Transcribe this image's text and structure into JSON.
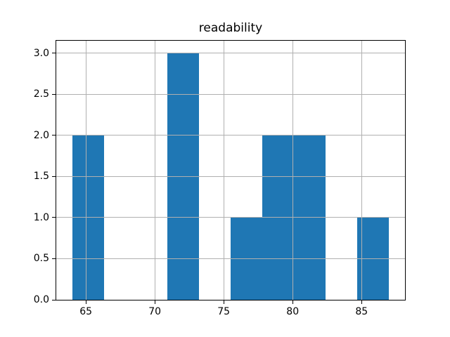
{
  "chart_data": {
    "type": "bar",
    "chart_kind": "histogram",
    "title": "readability",
    "xlabel": "",
    "ylabel": "",
    "bin_edges": [
      64.0,
      66.3,
      68.6,
      70.9,
      73.2,
      75.5,
      77.8,
      80.1,
      82.4,
      84.7,
      87.0
    ],
    "counts": [
      2,
      0,
      0,
      3,
      0,
      1,
      2,
      2,
      0,
      1
    ],
    "xtick_values": [
      65,
      70,
      75,
      80,
      85
    ],
    "xtick_labels": [
      "65",
      "70",
      "75",
      "80",
      "85"
    ],
    "ytick_values": [
      0.0,
      0.5,
      1.0,
      1.5,
      2.0,
      2.5,
      3.0
    ],
    "ytick_labels": [
      "0.0",
      "0.5",
      "1.0",
      "1.5",
      "2.0",
      "2.5",
      "3.0"
    ],
    "xlim": [
      62.85,
      88.15
    ],
    "ylim": [
      0,
      3.15
    ],
    "grid": true,
    "grid_over_bars": true,
    "legend_position": "none",
    "colors": {
      "bar": "#1f77b4",
      "grid": "#b0b0b0",
      "spine": "#000000",
      "text": "#000000",
      "background": "#ffffff"
    }
  }
}
